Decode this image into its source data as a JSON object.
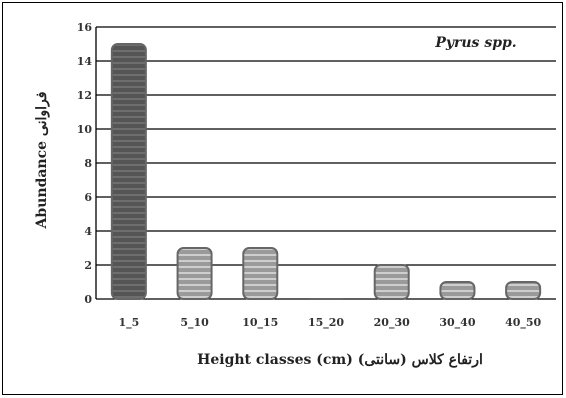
{
  "chart_data": {
    "type": "bar",
    "categories": [
      "1_5",
      "5_10",
      "10_15",
      "15_20",
      "20_30",
      "30_40",
      "40_50"
    ],
    "values": [
      15,
      3,
      3,
      0,
      2,
      1,
      1
    ],
    "xlabel": "Height classes (cm) (ارتفاع کلاس (سانتی",
    "ylabel": "Abundance فراوانی",
    "ylim": [
      0,
      16
    ],
    "yticks": [
      0,
      2,
      4,
      6,
      8,
      10,
      12,
      14,
      16
    ],
    "annotation": "Pyrus spp.",
    "grid": "horizontal",
    "legend": "none",
    "colors": {
      "first_bar": "#4d4d4d",
      "bars": "#8c8c8c",
      "grid": "#000000",
      "frame": "#000000"
    }
  }
}
